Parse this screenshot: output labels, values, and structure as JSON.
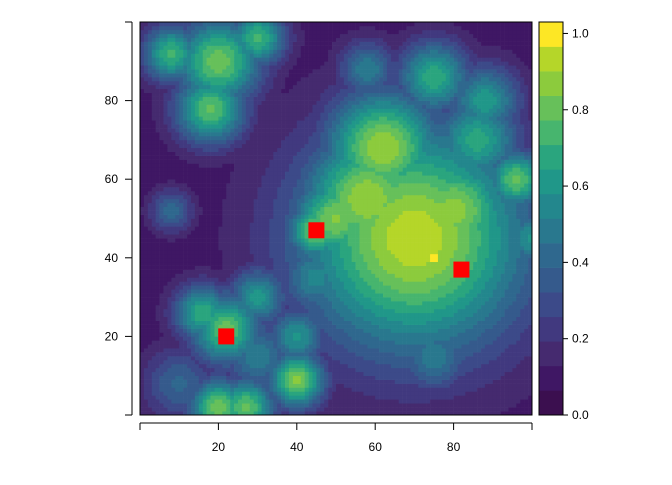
{
  "chart_data": {
    "type": "heatmap",
    "title": "",
    "xlabel": "",
    "ylabel": "",
    "xlim": [
      0,
      100
    ],
    "ylim": [
      0,
      100
    ],
    "x_ticks": [
      "20",
      "40",
      "60",
      "80"
    ],
    "y_ticks": [
      "20",
      "40",
      "60",
      "80"
    ],
    "colorbar": {
      "range": [
        0,
        1.03
      ],
      "ticks": [
        "0.0",
        "0.2",
        "0.4",
        "0.6",
        "0.8",
        "1.0"
      ],
      "tick_values": [
        0,
        0.2,
        0.4,
        0.6,
        0.8,
        1.0
      ],
      "levels": 16,
      "palette": "viridis"
    },
    "points": [
      {
        "x": 22,
        "y": 20
      },
      {
        "x": 45,
        "y": 47
      },
      {
        "x": 82,
        "y": 37
      }
    ],
    "point_color": "#ff0000",
    "point_shape": "square"
  }
}
